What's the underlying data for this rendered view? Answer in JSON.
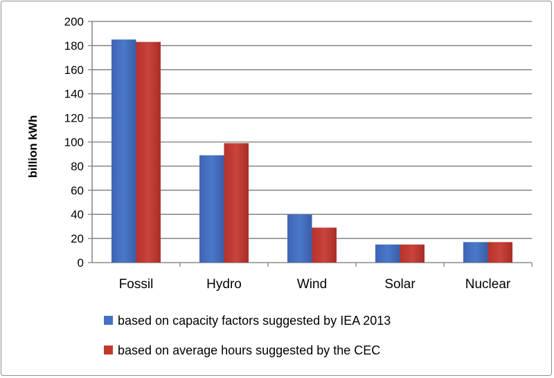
{
  "chart_data": {
    "type": "bar",
    "title": "",
    "xlabel": "",
    "ylabel": "billion kWh",
    "ylim": [
      0,
      200
    ],
    "yticks": [
      0,
      20,
      40,
      60,
      80,
      100,
      120,
      140,
      160,
      180,
      200
    ],
    "grid": true,
    "legend_position": "bottom",
    "categories": [
      "Fossil",
      "Hydro",
      "Wind",
      "Solar",
      "Nuclear"
    ],
    "series": [
      {
        "name": "based on capacity factors suggested by IEA 2013",
        "color": "#4472c4",
        "values": [
          185,
          89,
          40,
          15,
          17
        ]
      },
      {
        "name": "based on average hours suggested by the CEC",
        "color": "#c0392b",
        "values": [
          183,
          99,
          29,
          15,
          17
        ]
      }
    ]
  }
}
